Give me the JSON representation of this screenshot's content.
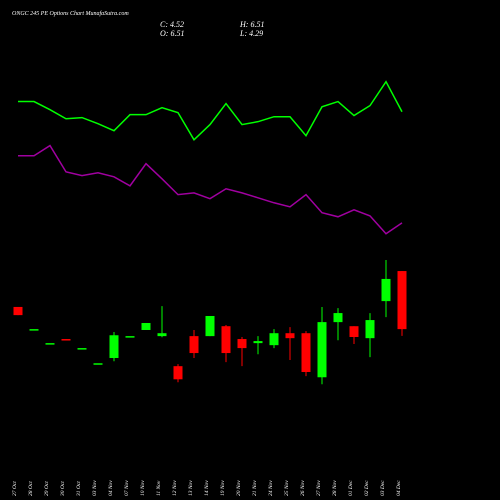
{
  "chart_data": {
    "type": "candlestick",
    "title": "ONGC 245 PE Options Chart MunafaSutra.com",
    "ohlc_labels": [
      "C: 4.52",
      "H: 6.51",
      "O: 6.51",
      "L: 4.29"
    ],
    "categories": [
      "27 Oct",
      "28 Oct",
      "29 Oct",
      "30 Oct",
      "31 Oct",
      "03 Nov",
      "04 Nov",
      "07 Nov",
      "10 Nov",
      "11 Nov",
      "12 Nov",
      "13 Nov",
      "14 Nov",
      "19 Nov",
      "20 Nov",
      "21 Nov",
      "24 Nov",
      "25 Nov",
      "26 Nov",
      "27 Nov",
      "28 Nov",
      "01 Dec",
      "02 Dec",
      "03 Dec",
      "04 Dec"
    ],
    "open": [
      5.28,
      4.52,
      4.04,
      4.18,
      3.87,
      3.35,
      3.53,
      4.28,
      4.49,
      4.28,
      3.25,
      4.28,
      4.28,
      4.62,
      4.18,
      4.04,
      3.97,
      4.38,
      4.38,
      2.87,
      4.76,
      4.62,
      4.21,
      5.48,
      6.51
    ],
    "high": [
      5.28,
      4.52,
      4.04,
      4.18,
      3.87,
      3.35,
      4.42,
      4.28,
      4.73,
      5.31,
      3.32,
      4.49,
      4.97,
      4.66,
      4.25,
      4.28,
      4.52,
      4.59,
      4.45,
      5.28,
      5.24,
      4.62,
      5.07,
      6.89,
      6.51
    ],
    "low": [
      5.0,
      4.52,
      4.04,
      4.15,
      3.87,
      3.35,
      3.42,
      4.28,
      4.49,
      4.24,
      2.7,
      3.53,
      4.28,
      3.39,
      3.25,
      3.66,
      3.87,
      3.46,
      2.91,
      2.63,
      4.14,
      4.01,
      3.56,
      4.93,
      4.29
    ],
    "close": [
      5.0,
      4.52,
      4.04,
      4.15,
      3.87,
      3.35,
      4.31,
      4.28,
      4.73,
      4.38,
      2.8,
      3.7,
      4.97,
      3.7,
      3.87,
      4.11,
      4.38,
      4.21,
      3.05,
      4.76,
      5.07,
      4.25,
      4.83,
      6.24,
      4.52
    ],
    "up_color": "#00ff00",
    "down_color": "#ff0000",
    "series": [
      {
        "color": "#00ff00",
        "values": [
          12.32,
          12.32,
          12.04,
          11.73,
          11.77,
          11.56,
          11.32,
          11.87,
          11.87,
          12.11,
          11.94,
          11.01,
          11.53,
          12.25,
          11.53,
          11.63,
          11.8,
          11.8,
          11.15,
          12.14,
          12.32,
          11.84,
          12.18,
          13.0,
          11.97
        ]
      },
      {
        "color": "#a000a0",
        "values": [
          10.46,
          10.46,
          10.81,
          9.91,
          9.78,
          9.88,
          9.74,
          9.43,
          10.19,
          9.67,
          9.13,
          9.19,
          8.99,
          9.33,
          9.19,
          9.02,
          8.85,
          8.71,
          9.13,
          8.51,
          8.37,
          8.61,
          8.4,
          7.79,
          8.16
        ]
      }
    ],
    "ylim": [
      0,
      15.8
    ]
  }
}
